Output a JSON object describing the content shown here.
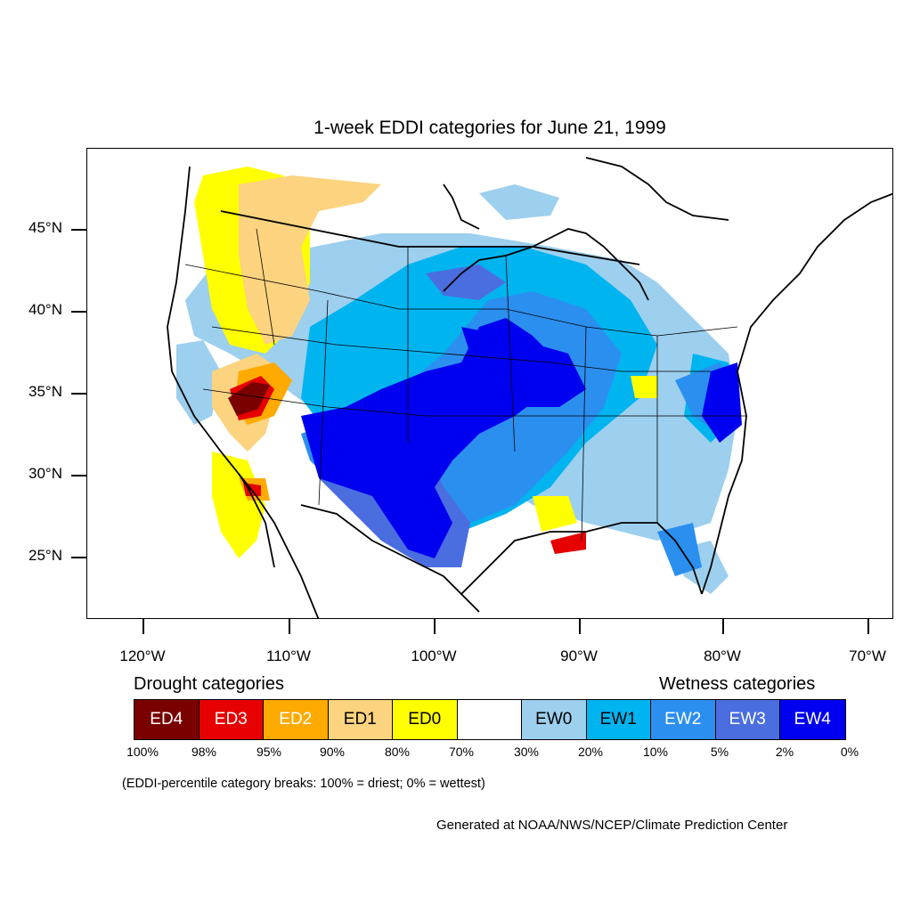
{
  "title": "1-week EDDI categories for June 21, 1999",
  "lat_labels": [
    "45°N",
    "40°N",
    "35°N",
    "30°N",
    "25°N"
  ],
  "lon_labels": [
    "120°W",
    "110°W",
    "100°W",
    "90°W",
    "80°W",
    "70°W"
  ],
  "drought_title": "Drought categories",
  "wetness_title": "Wetness categories",
  "categories": [
    {
      "label": "ED4",
      "color": "#7a0000",
      "text_color": "#ffffff"
    },
    {
      "label": "ED3",
      "color": "#e60000",
      "text_color": "#ffffff"
    },
    {
      "label": "ED2",
      "color": "#ffaa00",
      "text_color": "#ffffff"
    },
    {
      "label": "ED1",
      "color": "#fcd37f",
      "text_color": "#000000"
    },
    {
      "label": "ED0",
      "color": "#ffff00",
      "text_color": "#000000"
    },
    {
      "label": "",
      "color": "#ffffff",
      "text_color": "#000000"
    },
    {
      "label": "EW0",
      "color": "#9dcfee",
      "text_color": "#000000"
    },
    {
      "label": "EW1",
      "color": "#00b4f0",
      "text_color": "#000000"
    },
    {
      "label": "EW2",
      "color": "#2b8ff0",
      "text_color": "#ffffff"
    },
    {
      "label": "EW3",
      "color": "#4a6ee0",
      "text_color": "#ffffff"
    },
    {
      "label": "EW4",
      "color": "#0000f0",
      "text_color": "#ffffff"
    }
  ],
  "percentiles": [
    "100%",
    "98%",
    "95%",
    "90%",
    "80%",
    "70%",
    "30%",
    "20%",
    "10%",
    "5%",
    "2%",
    "0%"
  ],
  "note": "(EDDI-percentile category breaks: 100% = driest; 0% = wettest)",
  "credit": "Generated at NOAA/NWS/NCEP/Climate Prediction Center"
}
